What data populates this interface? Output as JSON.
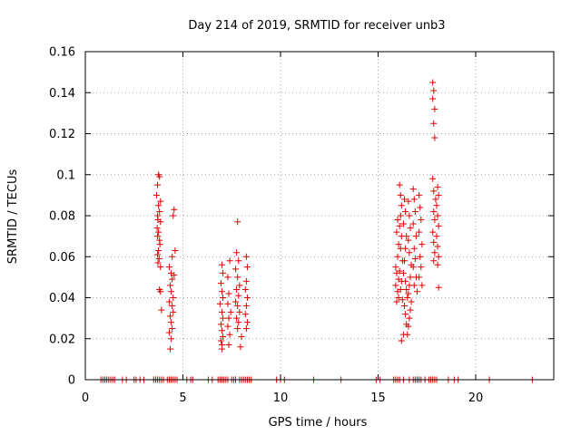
{
  "chart_data": {
    "type": "scatter",
    "title": "Day 214 of 2019, SRMTID for receiver unb3",
    "xlabel": "GPS time / hours",
    "ylabel": "SRMTID / TECUs",
    "xlim": [
      0,
      24
    ],
    "ylim": [
      0,
      0.16
    ],
    "xticks": [
      0,
      5,
      10,
      15,
      20
    ],
    "yticks": [
      0,
      0.02,
      0.04,
      0.06,
      0.08,
      0.1,
      0.12,
      0.14,
      0.16
    ],
    "xtick_labels": [
      "0",
      "5",
      "10",
      "15",
      "20"
    ],
    "ytick_labels": [
      "0",
      "0.02",
      "0.04",
      "0.06",
      "0.08",
      "0.1",
      "0.12",
      "0.14",
      "0.16"
    ],
    "grid": true,
    "marker": "+",
    "marker_color": "#e00000",
    "series": [
      {
        "name": "SRMTID",
        "points": [
          [
            3.75,
            0.1
          ],
          [
            3.8,
            0.099
          ],
          [
            3.7,
            0.095
          ],
          [
            3.65,
            0.09
          ],
          [
            3.85,
            0.087
          ],
          [
            3.75,
            0.085
          ],
          [
            3.8,
            0.082
          ],
          [
            3.7,
            0.08
          ],
          [
            3.72,
            0.078
          ],
          [
            3.85,
            0.077
          ],
          [
            3.68,
            0.074
          ],
          [
            3.75,
            0.072
          ],
          [
            3.7,
            0.07
          ],
          [
            3.8,
            0.068
          ],
          [
            3.82,
            0.066
          ],
          [
            3.75,
            0.063
          ],
          [
            3.7,
            0.061
          ],
          [
            3.78,
            0.059
          ],
          [
            3.72,
            0.057
          ],
          [
            3.85,
            0.055
          ],
          [
            3.8,
            0.044
          ],
          [
            3.85,
            0.043
          ],
          [
            3.9,
            0.034
          ],
          [
            4.55,
            0.083
          ],
          [
            4.5,
            0.08
          ],
          [
            4.6,
            0.063
          ],
          [
            4.45,
            0.06
          ],
          [
            4.3,
            0.055
          ],
          [
            4.4,
            0.052
          ],
          [
            4.55,
            0.051
          ],
          [
            4.45,
            0.049
          ],
          [
            4.35,
            0.046
          ],
          [
            4.4,
            0.043
          ],
          [
            4.5,
            0.04
          ],
          [
            4.3,
            0.038
          ],
          [
            4.45,
            0.036
          ],
          [
            4.5,
            0.033
          ],
          [
            4.35,
            0.031
          ],
          [
            4.4,
            0.028
          ],
          [
            4.45,
            0.025
          ],
          [
            4.3,
            0.023
          ],
          [
            4.4,
            0.02
          ],
          [
            4.35,
            0.015
          ],
          [
            7.0,
            0.056
          ],
          [
            7.05,
            0.052
          ],
          [
            6.95,
            0.047
          ],
          [
            7.0,
            0.043
          ],
          [
            7.05,
            0.04
          ],
          [
            6.9,
            0.037
          ],
          [
            7.0,
            0.033
          ],
          [
            7.05,
            0.03
          ],
          [
            6.95,
            0.027
          ],
          [
            7.0,
            0.024
          ],
          [
            7.05,
            0.021
          ],
          [
            6.95,
            0.019
          ],
          [
            7.0,
            0.017
          ],
          [
            7.0,
            0.015
          ],
          [
            7.4,
            0.058
          ],
          [
            7.3,
            0.05
          ],
          [
            7.35,
            0.042
          ],
          [
            7.3,
            0.037
          ],
          [
            7.45,
            0.033
          ],
          [
            7.35,
            0.03
          ],
          [
            7.3,
            0.026
          ],
          [
            7.4,
            0.022
          ],
          [
            7.35,
            0.017
          ],
          [
            7.8,
            0.077
          ],
          [
            7.75,
            0.062
          ],
          [
            7.85,
            0.058
          ],
          [
            7.7,
            0.054
          ],
          [
            7.8,
            0.05
          ],
          [
            7.9,
            0.046
          ],
          [
            7.75,
            0.044
          ],
          [
            7.85,
            0.041
          ],
          [
            7.7,
            0.038
          ],
          [
            7.8,
            0.036
          ],
          [
            7.9,
            0.033
          ],
          [
            7.75,
            0.03
          ],
          [
            7.85,
            0.028
          ],
          [
            7.8,
            0.025
          ],
          [
            8.0,
            0.021
          ],
          [
            7.95,
            0.016
          ],
          [
            8.25,
            0.06
          ],
          [
            8.3,
            0.055
          ],
          [
            8.25,
            0.048
          ],
          [
            8.2,
            0.044
          ],
          [
            8.3,
            0.04
          ],
          [
            8.25,
            0.036
          ],
          [
            8.2,
            0.032
          ],
          [
            8.3,
            0.028
          ],
          [
            8.25,
            0.025
          ],
          [
            16.0,
            0.078
          ],
          [
            15.95,
            0.072
          ],
          [
            16.05,
            0.066
          ],
          [
            16.0,
            0.06
          ],
          [
            15.9,
            0.055
          ],
          [
            15.95,
            0.052
          ],
          [
            16.05,
            0.049
          ],
          [
            15.9,
            0.046
          ],
          [
            16.0,
            0.043
          ],
          [
            16.05,
            0.04
          ],
          [
            15.95,
            0.038
          ],
          [
            16.1,
            0.095
          ],
          [
            16.15,
            0.09
          ],
          [
            16.2,
            0.085
          ],
          [
            16.15,
            0.08
          ],
          [
            16.1,
            0.075
          ],
          [
            16.2,
            0.07
          ],
          [
            16.15,
            0.064
          ],
          [
            16.25,
            0.058
          ],
          [
            16.1,
            0.053
          ],
          [
            16.2,
            0.048
          ],
          [
            16.15,
            0.044
          ],
          [
            16.25,
            0.039
          ],
          [
            16.35,
            0.088
          ],
          [
            16.4,
            0.082
          ],
          [
            16.3,
            0.076
          ],
          [
            16.45,
            0.07
          ],
          [
            16.4,
            0.064
          ],
          [
            16.35,
            0.058
          ],
          [
            16.3,
            0.052
          ],
          [
            16.4,
            0.048
          ],
          [
            16.45,
            0.044
          ],
          [
            16.5,
            0.04
          ],
          [
            16.35,
            0.036
          ],
          [
            16.4,
            0.032
          ],
          [
            16.45,
            0.027
          ],
          [
            16.3,
            0.022
          ],
          [
            16.2,
            0.019
          ],
          [
            16.55,
            0.087
          ],
          [
            16.6,
            0.08
          ],
          [
            16.65,
            0.074
          ],
          [
            16.55,
            0.068
          ],
          [
            16.6,
            0.062
          ],
          [
            16.7,
            0.056
          ],
          [
            16.65,
            0.05
          ],
          [
            16.6,
            0.046
          ],
          [
            16.55,
            0.042
          ],
          [
            16.7,
            0.038
          ],
          [
            16.65,
            0.034
          ],
          [
            16.6,
            0.03
          ],
          [
            16.55,
            0.026
          ],
          [
            16.5,
            0.022
          ],
          [
            16.8,
            0.093
          ],
          [
            16.85,
            0.088
          ],
          [
            16.9,
            0.082
          ],
          [
            16.8,
            0.076
          ],
          [
            16.95,
            0.07
          ],
          [
            16.85,
            0.064
          ],
          [
            16.9,
            0.059
          ],
          [
            16.8,
            0.055
          ],
          [
            16.95,
            0.05
          ],
          [
            16.85,
            0.046
          ],
          [
            17.0,
            0.043
          ],
          [
            17.1,
            0.09
          ],
          [
            17.15,
            0.084
          ],
          [
            17.2,
            0.078
          ],
          [
            17.1,
            0.072
          ],
          [
            17.25,
            0.066
          ],
          [
            17.15,
            0.06
          ],
          [
            17.2,
            0.055
          ],
          [
            17.1,
            0.05
          ],
          [
            17.25,
            0.046
          ],
          [
            17.8,
            0.145
          ],
          [
            17.85,
            0.141
          ],
          [
            17.8,
            0.137
          ],
          [
            17.9,
            0.132
          ],
          [
            17.85,
            0.125
          ],
          [
            17.9,
            0.118
          ],
          [
            17.8,
            0.098
          ],
          [
            17.85,
            0.092
          ],
          [
            17.95,
            0.088
          ],
          [
            17.85,
            0.082
          ],
          [
            17.9,
            0.078
          ],
          [
            17.8,
            0.072
          ],
          [
            17.85,
            0.067
          ],
          [
            17.9,
            0.062
          ],
          [
            17.85,
            0.058
          ],
          [
            18.05,
            0.094
          ],
          [
            18.1,
            0.09
          ],
          [
            18.0,
            0.085
          ],
          [
            18.05,
            0.08
          ],
          [
            18.1,
            0.075
          ],
          [
            18.0,
            0.07
          ],
          [
            18.05,
            0.065
          ],
          [
            18.1,
            0.06
          ],
          [
            18.05,
            0.056
          ],
          [
            18.1,
            0.045
          ]
        ],
        "zero_x": [
          0.8,
          0.9,
          1.0,
          1.1,
          1.2,
          1.3,
          1.4,
          1.5,
          1.9,
          2.1,
          2.5,
          2.6,
          2.8,
          3.0,
          3.5,
          3.6,
          3.7,
          3.8,
          3.9,
          4.0,
          4.2,
          4.3,
          4.4,
          4.5,
          4.6,
          4.7,
          5.2,
          5.4,
          5.5,
          6.3,
          6.5,
          6.8,
          6.9,
          7.0,
          7.1,
          7.2,
          7.3,
          7.5,
          7.6,
          7.7,
          7.9,
          8.0,
          8.1,
          8.2,
          8.3,
          8.4,
          8.5,
          9.8,
          10.0,
          10.2,
          11.7,
          13.1,
          14.9,
          15.1,
          15.8,
          15.9,
          16.0,
          16.1,
          16.3,
          16.6,
          16.8,
          16.9,
          17.0,
          17.1,
          17.2,
          17.4,
          17.6,
          17.7,
          17.8,
          17.9,
          18.0,
          18.6,
          18.9,
          19.1,
          20.7,
          22.9
        ]
      }
    ]
  }
}
